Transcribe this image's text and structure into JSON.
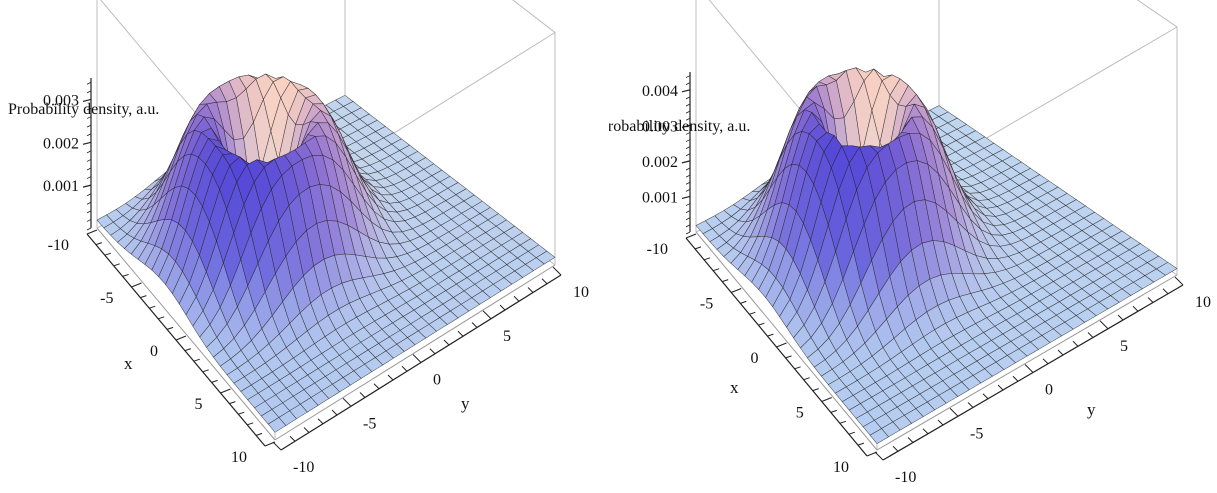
{
  "chart_data": [
    {
      "type": "surface",
      "zlabel": "Probability density, a.u.",
      "xlabel": "x",
      "ylabel": "y",
      "x_ticks": [
        -10,
        -5,
        0,
        5,
        10
      ],
      "y_ticks": [
        -10,
        -5,
        0,
        5,
        10
      ],
      "z_ticks": [
        0.001,
        0.002,
        0.003
      ],
      "z_tick_labels": [
        "0.001",
        "0.002",
        "0.003"
      ],
      "xlim": [
        -10,
        10
      ],
      "ylim": [
        -10,
        10
      ],
      "zlim": [
        0,
        0.0035
      ],
      "ring": {
        "center_x": -2.5,
        "center_y": -2.5,
        "radius": 3.5,
        "peak": 0.003
      }
    },
    {
      "type": "surface",
      "zlabel": "Probability density, a.u.",
      "xlabel": "x",
      "ylabel": "y",
      "x_ticks": [
        -10,
        -5,
        0,
        5,
        10
      ],
      "y_ticks": [
        -10,
        -5,
        0,
        5,
        10
      ],
      "z_ticks": [
        0.001,
        0.002,
        0.003,
        0.004
      ],
      "z_tick_labels": [
        "0.001",
        "0.002",
        "0.003",
        "0.004"
      ],
      "xlim": [
        -10,
        10
      ],
      "ylim": [
        -10,
        10
      ],
      "zlim": [
        0,
        0.0045
      ],
      "ring": {
        "center_x": -2.5,
        "center_y": -2.5,
        "radius": 3.0,
        "peak": 0.0042
      }
    }
  ],
  "colors": {
    "low": "#bcd6f2",
    "mid_blue": "#5548d8",
    "pink": "#f4b7c8",
    "peach": "#fbe2bf",
    "mesh": "#202020",
    "box": "#bdbdbd"
  }
}
